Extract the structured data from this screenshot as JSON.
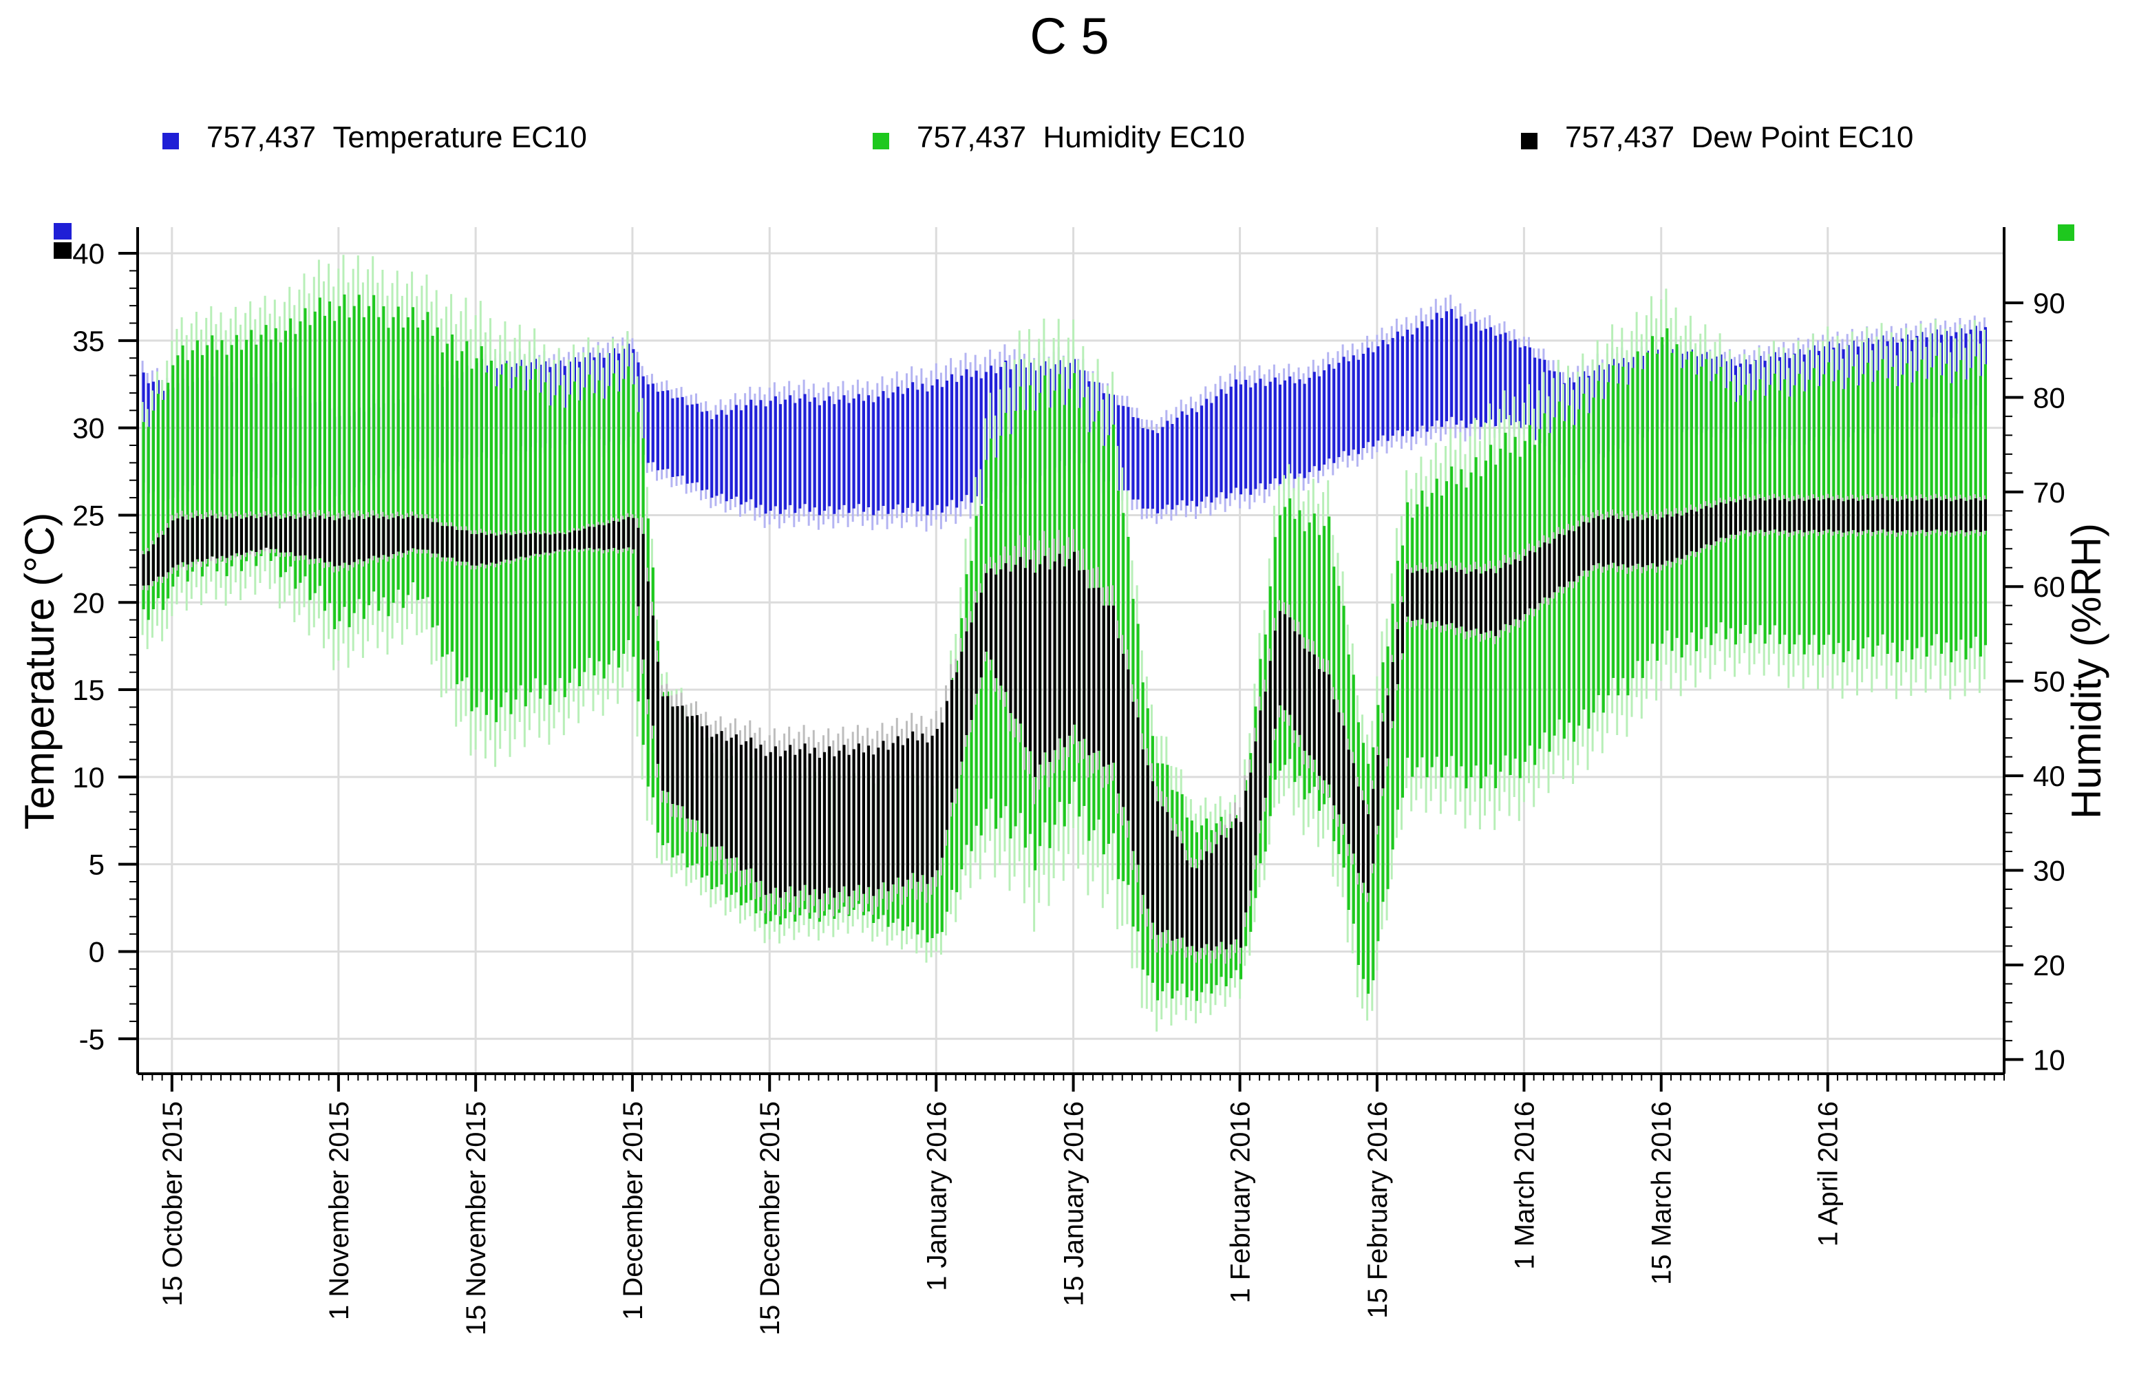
{
  "chart_data": {
    "type": "line",
    "title": "C 5",
    "legend": [
      {
        "id": "757,437",
        "name": "Temperature EC10",
        "color": "#1f1fd6"
      },
      {
        "id": "757,437",
        "name": "Humidity EC10",
        "color": "#1ec81e"
      },
      {
        "id": "757,437",
        "name": "Dew Point EC10",
        "color": "#000000"
      }
    ],
    "ylabel_left": "Temperature (°C)",
    "ylabel_right": "Humidity (%RH)",
    "ylim_left": [
      -7,
      41.5
    ],
    "ylim_right": [
      8.5,
      98
    ],
    "yticks_left": [
      -5,
      0,
      5,
      10,
      15,
      20,
      25,
      30,
      35,
      40
    ],
    "yticks_right": [
      10,
      20,
      30,
      40,
      50,
      60,
      70,
      80,
      90
    ],
    "x_range_days": [
      -3.5,
      187
    ],
    "x_ticks": [
      {
        "day": 0,
        "label": "15 October 2015"
      },
      {
        "day": 17,
        "label": "1 November 2015"
      },
      {
        "day": 31,
        "label": "15 November 2015"
      },
      {
        "day": 47,
        "label": "1 December 2015"
      },
      {
        "day": 61,
        "label": "15 December 2015"
      },
      {
        "day": 78,
        "label": "1 January 2016"
      },
      {
        "day": 92,
        "label": "15 January 2016"
      },
      {
        "day": 109,
        "label": "1 February 2016"
      },
      {
        "day": 123,
        "label": "15 February 2016"
      },
      {
        "day": 138,
        "label": "1 March 2016"
      },
      {
        "day": 152,
        "label": "15 March 2016"
      },
      {
        "day": 169,
        "label": "1 April 2016"
      }
    ],
    "series": [
      {
        "name": "Temperature EC10",
        "axis": "left",
        "sampling": "daily envelope (day offset from 15 October 2015)",
        "day": [
          -3,
          0,
          5,
          10,
          17,
          25,
          31,
          40,
          47,
          48,
          55,
          61,
          70,
          78,
          85,
          92,
          100,
          109,
          115,
          123,
          130,
          138,
          142,
          152,
          160,
          169,
          185
        ],
        "max": [
          34,
          33,
          33,
          33,
          31,
          32,
          34,
          34,
          35,
          33,
          31,
          32,
          32,
          33,
          34,
          34,
          30,
          33,
          33,
          35,
          37,
          35,
          33,
          35,
          34,
          35,
          36
        ],
        "min": [
          27,
          26,
          27,
          27,
          26,
          28,
          28,
          29,
          29,
          28,
          26,
          25,
          25,
          25,
          26,
          28,
          25,
          26,
          27,
          29,
          30,
          30,
          27,
          30,
          29,
          29,
          31
        ]
      },
      {
        "name": "Humidity EC10",
        "axis": "right",
        "sampling": "daily envelope (day offset from 15 October 2015)",
        "day": [
          -3,
          0,
          10,
          17,
          25,
          31,
          40,
          47,
          48,
          50,
          55,
          61,
          70,
          78,
          83,
          88,
          92,
          96,
          100,
          104,
          109,
          113,
          118,
          122,
          126,
          135,
          145,
          152,
          160,
          169,
          185
        ],
        "max": [
          80,
          86,
          88,
          92,
          90,
          86,
          82,
          84,
          76,
          50,
          44,
          41,
          41,
          40,
          76,
          84,
          83,
          78,
          45,
          36,
          36,
          70,
          68,
          42,
          70,
          76,
          82,
          88,
          82,
          84,
          85
        ],
        "min": [
          58,
          60,
          62,
          55,
          58,
          45,
          48,
          52,
          40,
          32,
          28,
          24,
          25,
          22,
          35,
          30,
          35,
          30,
          16,
          16,
          18,
          40,
          35,
          15,
          40,
          38,
          45,
          52,
          54,
          52,
          52
        ]
      },
      {
        "name": "Dew Point EC10",
        "axis": "left",
        "sampling": "daily envelope (day offset from 15 October 2015)",
        "day": [
          -3,
          0,
          10,
          17,
          25,
          31,
          40,
          47,
          48,
          50,
          55,
          61,
          70,
          78,
          83,
          88,
          92,
          96,
          100,
          104,
          109,
          113,
          118,
          122,
          126,
          135,
          145,
          152,
          160,
          169,
          185
        ],
        "max": [
          23,
          25,
          25,
          25,
          25,
          24,
          24,
          25,
          24,
          15,
          13,
          12,
          12,
          13,
          22,
          23,
          23,
          20,
          10,
          5,
          8,
          20,
          16,
          8,
          22,
          22,
          25,
          25,
          26,
          26,
          26
        ],
        "min": [
          21,
          22,
          23,
          22,
          23,
          22,
          23,
          23,
          16,
          9,
          6,
          3,
          3,
          4,
          17,
          10,
          12,
          10,
          1,
          0,
          0,
          14,
          9,
          3,
          19,
          18,
          22,
          22,
          24,
          24,
          24
        ]
      }
    ]
  }
}
